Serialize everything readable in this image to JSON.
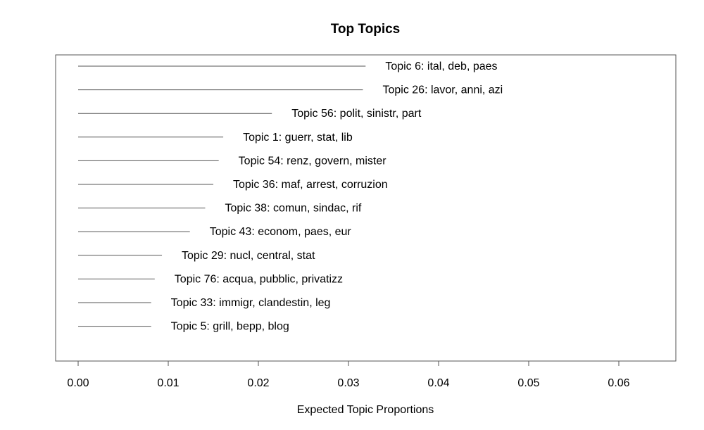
{
  "chart_data": {
    "type": "bar",
    "orientation": "horizontal",
    "title": "Top Topics",
    "xlabel": "Expected Topic Proportions",
    "ylabel": "",
    "xlim": [
      0,
      0.06
    ],
    "x_ticks": [
      "0.00",
      "0.01",
      "0.02",
      "0.03",
      "0.04",
      "0.05",
      "0.06"
    ],
    "x_tick_values": [
      0,
      0.01,
      0.02,
      0.03,
      0.04,
      0.05,
      0.06
    ],
    "grid": false,
    "bar_color": "#555555",
    "categories": [
      "Topic 6: ital, deb, paes",
      "Topic 26: lavor, anni, azi",
      "Topic 56: polit, sinistr, part",
      "Topic 1: guerr, stat, lib",
      "Topic 54: renz, govern, mister",
      "Topic 36: maf, arrest, corruzion",
      "Topic 38: comun, sindac, rif",
      "Topic 43: econom, paes, eur",
      "Topic 29: nucl, central, stat",
      "Topic 76: acqua, pubblic, privatizz",
      "Topic 33: immigr, clandestin, leg",
      "Topic 5: grill, bepp, blog"
    ],
    "values": [
      0.0319,
      0.0316,
      0.0215,
      0.0161,
      0.0156,
      0.015,
      0.0141,
      0.0124,
      0.0093,
      0.0085,
      0.0081,
      0.0081
    ]
  }
}
